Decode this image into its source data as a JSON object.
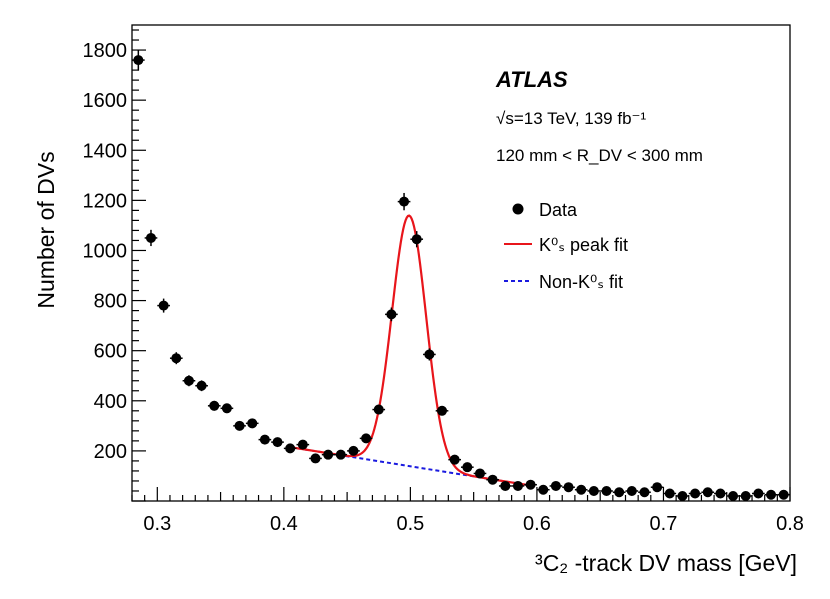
{
  "chart_data": {
    "type": "scatter",
    "experiment": "ATLAS",
    "energy_label": "√s=13 TeV, 139 fb⁻¹",
    "region_label": "120 mm < R_DV < 300 mm",
    "xlabel": "³C₂ -track DV mass [GeV]",
    "ylabel": "Number of DVs",
    "xlim": [
      0.28,
      0.8
    ],
    "ylim": [
      0,
      1900
    ],
    "x_ticks": [
      0.3,
      0.4,
      0.5,
      0.6,
      0.7,
      0.8
    ],
    "x_tick_labels": [
      "0.3",
      "0.4",
      "0.5",
      "0.6",
      "0.7",
      "0.8"
    ],
    "y_ticks": [
      200,
      400,
      600,
      800,
      1000,
      1200,
      1400,
      1600,
      1800
    ],
    "y_tick_labels": [
      "200",
      "400",
      "600",
      "800",
      "1000",
      "1200",
      "1400",
      "1600",
      "1800"
    ],
    "legend": {
      "position": "top-right",
      "entries": [
        {
          "label": "Data",
          "style": "marker"
        },
        {
          "label": "K⁰ₛ peak fit",
          "style": "solid",
          "color": "#e8151b"
        },
        {
          "label": "Non-K⁰ₛ fit",
          "style": "dashed",
          "color": "#1a1adf"
        }
      ]
    },
    "series": [
      {
        "name": "Data",
        "color": "#000000",
        "x": [
          0.285,
          0.295,
          0.305,
          0.315,
          0.325,
          0.335,
          0.345,
          0.355,
          0.365,
          0.375,
          0.385,
          0.395,
          0.405,
          0.415,
          0.425,
          0.435,
          0.445,
          0.455,
          0.465,
          0.475,
          0.485,
          0.495,
          0.505,
          0.515,
          0.525,
          0.535,
          0.545,
          0.555,
          0.565,
          0.575,
          0.585,
          0.595,
          0.605,
          0.615,
          0.625,
          0.635,
          0.645,
          0.655,
          0.665,
          0.675,
          0.685,
          0.695,
          0.705,
          0.715,
          0.725,
          0.735,
          0.745,
          0.755,
          0.765,
          0.775,
          0.785,
          0.795
        ],
        "y": [
          1760,
          1050,
          780,
          570,
          480,
          460,
          380,
          370,
          300,
          310,
          245,
          235,
          210,
          225,
          170,
          185,
          185,
          200,
          250,
          365,
          745,
          1195,
          1045,
          585,
          360,
          165,
          135,
          110,
          85,
          60,
          60,
          65,
          45,
          60,
          55,
          45,
          40,
          40,
          35,
          40,
          35,
          55,
          30,
          20,
          30,
          35,
          30,
          20,
          20,
          30,
          25,
          25
        ]
      },
      {
        "name": "K⁰ₛ peak fit",
        "color": "#e8151b",
        "model": "gaussian on linear background",
        "mean": 0.499,
        "sigma": 0.0135,
        "amplitude": 1000,
        "x_range": [
          0.405,
          0.595
        ]
      },
      {
        "name": "Non-K⁰ₛ fit",
        "color": "#1a1adf",
        "model": "linear",
        "points": [
          [
            0.405,
            215
          ],
          [
            0.595,
            62
          ]
        ]
      }
    ]
  }
}
